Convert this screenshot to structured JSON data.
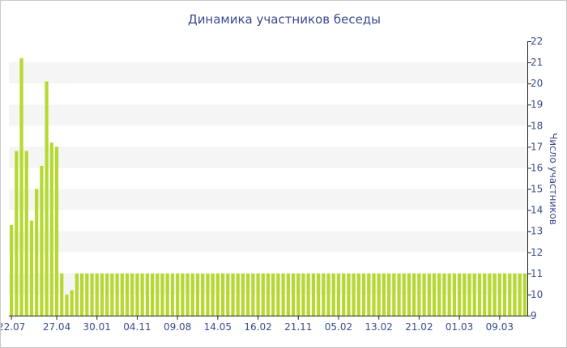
{
  "colors": {
    "bar": "#b5d930",
    "band": "#f5f5f5",
    "text": "#3a4a8c",
    "axis": "#222222",
    "border": "#c9c9c9"
  },
  "chart_data": {
    "type": "bar",
    "title": "Динамика участников беседы",
    "ylabel": "Число участников",
    "xlabel": "",
    "ylim": [
      9,
      22
    ],
    "yticks": [
      9,
      10,
      11,
      12,
      13,
      14,
      15,
      16,
      17,
      18,
      19,
      20,
      21,
      22
    ],
    "y_axis_position": "right",
    "grid": "alternating horizontal bands",
    "x_tick_labels": [
      {
        "index": 0,
        "label": "22.07"
      },
      {
        "index": 9,
        "label": "27.04"
      },
      {
        "index": 17,
        "label": "30.01"
      },
      {
        "index": 25,
        "label": "04.11"
      },
      {
        "index": 33,
        "label": "09.08"
      },
      {
        "index": 41,
        "label": "14.05"
      },
      {
        "index": 49,
        "label": "16.02"
      },
      {
        "index": 57,
        "label": "21.11"
      },
      {
        "index": 65,
        "label": "05.02"
      },
      {
        "index": 73,
        "label": "13.02"
      },
      {
        "index": 81,
        "label": "21.02"
      },
      {
        "index": 89,
        "label": "01.03"
      },
      {
        "index": 97,
        "label": "09.03"
      }
    ],
    "values": [
      13.3,
      16.8,
      21.2,
      16.8,
      13.5,
      15.0,
      16.1,
      20.1,
      17.2,
      17.0,
      11.0,
      10.0,
      10.2,
      11.0,
      11,
      11,
      11,
      11,
      11,
      11,
      11,
      11,
      11,
      11,
      11,
      11,
      11,
      11,
      11,
      11,
      11,
      11,
      11,
      11,
      11,
      11,
      11,
      11,
      11,
      11,
      11,
      11,
      11,
      11,
      11,
      11,
      11,
      11,
      11,
      11,
      11,
      11,
      11,
      11,
      11,
      11,
      11,
      11,
      11,
      11,
      11,
      11,
      11,
      11,
      11,
      11,
      11,
      11,
      11,
      11,
      11,
      11,
      11,
      11,
      11,
      11,
      11,
      11,
      11,
      11,
      11,
      11,
      11,
      11,
      11,
      11,
      11,
      11,
      11,
      11,
      11,
      11,
      11,
      11,
      11,
      11,
      11,
      11,
      11,
      11,
      11,
      11,
      11
    ]
  }
}
